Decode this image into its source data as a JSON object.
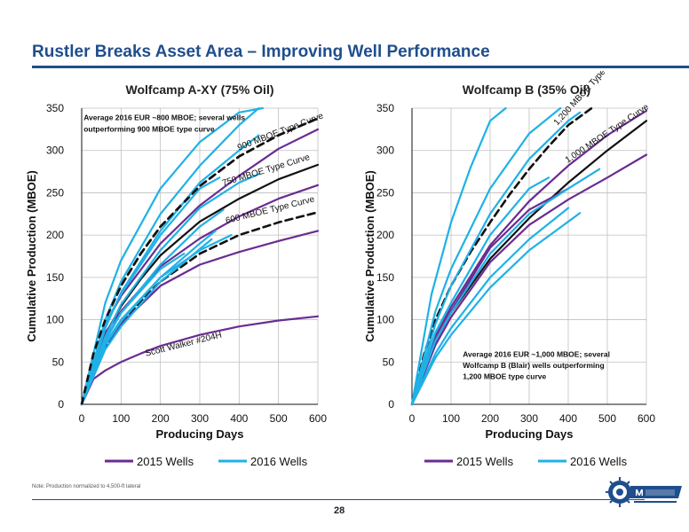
{
  "slide": {
    "title": "Rustler Breaks Asset Area – Improving Well Performance",
    "note": "Note: Production normalized to 4,500-ft lateral",
    "page_number": "28"
  },
  "colors": {
    "well2015": "#6a2c91",
    "well2016": "#1fb1e6",
    "type_curve": "#111111",
    "title": "#1f4e8c",
    "grid": "#bfbfbf"
  },
  "chart_data": [
    {
      "type": "line",
      "title": "Wolfcamp A-XY (75% Oil)",
      "xlabel": "Producing Days",
      "ylabel": "Cumulative Production (MBOE)",
      "xlim": [
        0,
        600
      ],
      "ylim": [
        0,
        350
      ],
      "xticks": [
        0,
        100,
        200,
        300,
        400,
        500,
        600
      ],
      "yticks": [
        0,
        50,
        100,
        150,
        200,
        250,
        300,
        350
      ],
      "grid": true,
      "legend": {
        "position": "bottom",
        "entries": [
          {
            "label": "2015 Wells",
            "style": "well2015"
          },
          {
            "label": "2016 Wells",
            "style": "well2016"
          }
        ]
      },
      "annotations": [
        {
          "text": "Average 2016 EUR ~800 MBOE; several wells",
          "at": [
            5,
            336
          ]
        },
        {
          "text": "outperforming 900 MBOE type curve",
          "at": [
            5,
            322
          ]
        }
      ],
      "series": [
        {
          "style": "type_dashed",
          "label": "900 MBOE Type Curve",
          "x": [
            0,
            30,
            60,
            100,
            150,
            200,
            300,
            400,
            500,
            600
          ],
          "y": [
            0,
            60,
            100,
            140,
            178,
            210,
            258,
            293,
            318,
            338
          ]
        },
        {
          "style": "type_solid",
          "label": "750 MBOE Type Curve",
          "x": [
            0,
            30,
            60,
            100,
            150,
            200,
            300,
            400,
            500,
            600
          ],
          "y": [
            0,
            50,
            83,
            116,
            148,
            176,
            216,
            243,
            266,
            283
          ]
        },
        {
          "style": "type_dashed",
          "label": "600 MBOE Type Curve",
          "x": [
            0,
            30,
            60,
            100,
            150,
            200,
            300,
            400,
            500,
            600
          ],
          "y": [
            0,
            42,
            68,
            95,
            122,
            145,
            178,
            200,
            215,
            227
          ]
        },
        {
          "style": "well2015",
          "label": "Scott Walker #204H",
          "x": [
            0,
            30,
            60,
            100,
            150,
            200,
            300,
            400,
            500,
            600
          ],
          "y": [
            0,
            30,
            40,
            50,
            60,
            69,
            82,
            92,
            99,
            104
          ]
        },
        {
          "style": "well2015",
          "x": [
            0,
            60,
            100,
            200,
            300,
            400,
            500,
            600
          ],
          "y": [
            0,
            95,
            128,
            190,
            235,
            270,
            302,
            325
          ]
        },
        {
          "style": "well2015",
          "x": [
            0,
            60,
            100,
            200,
            300,
            400,
            500,
            600
          ],
          "y": [
            0,
            85,
            110,
            163,
            196,
            222,
            243,
            259
          ]
        },
        {
          "style": "well2015",
          "x": [
            0,
            60,
            100,
            200,
            300,
            400,
            500,
            600
          ],
          "y": [
            0,
            70,
            95,
            140,
            165,
            180,
            193,
            205
          ]
        },
        {
          "style": "well2016",
          "x": [
            0,
            60,
            100,
            200,
            300,
            400,
            460
          ],
          "y": [
            0,
            120,
            170,
            255,
            310,
            345,
            350
          ]
        },
        {
          "style": "well2016",
          "x": [
            0,
            60,
            100,
            200,
            300,
            400,
            450
          ],
          "y": [
            0,
            100,
            145,
            225,
            282,
            330,
            350
          ]
        },
        {
          "style": "well2016",
          "x": [
            0,
            60,
            100,
            200,
            300,
            400,
            450
          ],
          "y": [
            0,
            90,
            132,
            205,
            262,
            300,
            318
          ]
        },
        {
          "style": "well2016",
          "x": [
            0,
            60,
            100,
            200,
            300,
            350
          ],
          "y": [
            0,
            95,
            130,
            200,
            255,
            268
          ]
        },
        {
          "style": "well2016",
          "x": [
            0,
            60,
            100,
            200,
            300,
            400,
            450
          ],
          "y": [
            0,
            80,
            118,
            182,
            232,
            262,
            272
          ]
        },
        {
          "style": "well2016",
          "x": [
            0,
            60,
            100,
            200,
            300,
            360
          ],
          "y": [
            0,
            75,
            108,
            165,
            210,
            230
          ]
        },
        {
          "style": "well2016",
          "x": [
            0,
            60,
            100,
            200,
            300,
            340
          ],
          "y": [
            0,
            70,
            98,
            150,
            190,
            205
          ]
        },
        {
          "style": "well2016",
          "x": [
            0,
            60,
            100,
            200,
            300,
            380
          ],
          "y": [
            0,
            72,
            100,
            150,
            182,
            200
          ]
        },
        {
          "style": "well2016",
          "x": [
            0,
            60,
            100,
            200,
            260
          ],
          "y": [
            0,
            78,
            108,
            160,
            178
          ]
        },
        {
          "style": "well2016",
          "x": [
            0,
            60,
            100,
            200,
            330
          ],
          "y": [
            0,
            65,
            92,
            145,
            195
          ]
        }
      ]
    },
    {
      "type": "line",
      "title": "Wolfcamp B (35% Oil)",
      "xlabel": "Producing Days",
      "ylabel": "Cumulative Production (MBOE)",
      "xlim": [
        0,
        600
      ],
      "ylim": [
        0,
        350
      ],
      "xticks": [
        0,
        100,
        200,
        300,
        400,
        500,
        600
      ],
      "yticks": [
        0,
        50,
        100,
        150,
        200,
        250,
        300,
        350
      ],
      "grid": true,
      "legend": {
        "position": "bottom",
        "entries": [
          {
            "label": "2015 Wells",
            "style": "well2015"
          },
          {
            "label": "2016 Wells",
            "style": "well2016"
          }
        ]
      },
      "annotations": [
        {
          "text": "Average 2016 EUR ~1,000 MBOE; several",
          "at": [
            130,
            56
          ]
        },
        {
          "text": "Wolfcamp B (Blair) wells outperforming",
          "at": [
            130,
            43
          ]
        },
        {
          "text": "1,200 MBOE type curve",
          "at": [
            130,
            30
          ]
        }
      ],
      "series": [
        {
          "style": "type_dashed",
          "label": "1,200 MBOE Type Curve",
          "x": [
            0,
            30,
            60,
            100,
            150,
            200,
            250,
            300,
            350,
            400,
            460
          ],
          "y": [
            0,
            58,
            100,
            140,
            180,
            215,
            248,
            278,
            305,
            330,
            350
          ]
        },
        {
          "style": "type_solid",
          "label": "1,000 MBOE Type Curve",
          "x": [
            0,
            30,
            60,
            100,
            150,
            200,
            300,
            400,
            500,
            600
          ],
          "y": [
            0,
            45,
            75,
            108,
            140,
            172,
            220,
            262,
            300,
            335
          ]
        },
        {
          "style": "well2015",
          "x": [
            0,
            60,
            100,
            200,
            300,
            400,
            500,
            600
          ],
          "y": [
            0,
            80,
            115,
            188,
            240,
            282,
            318,
            347
          ]
        },
        {
          "style": "well2015",
          "x": [
            0,
            60,
            100,
            200,
            300,
            400,
            500,
            600
          ],
          "y": [
            0,
            70,
            103,
            168,
            212,
            242,
            268,
            295
          ]
        },
        {
          "style": "well2015",
          "x": [
            0,
            60,
            100,
            200,
            300,
            400
          ],
          "y": [
            0,
            75,
            110,
            185,
            230,
            255
          ]
        },
        {
          "style": "well2016",
          "x": [
            0,
            50,
            100,
            150,
            200,
            240
          ],
          "y": [
            0,
            130,
            215,
            280,
            335,
            350
          ]
        },
        {
          "style": "well2016",
          "x": [
            0,
            60,
            100,
            200,
            300,
            380
          ],
          "y": [
            0,
            110,
            160,
            255,
            320,
            350
          ]
        },
        {
          "style": "well2016",
          "x": [
            0,
            60,
            100,
            200,
            300,
            400,
            430
          ],
          "y": [
            0,
            95,
            140,
            225,
            290,
            335,
            345
          ]
        },
        {
          "style": "well2016",
          "x": [
            0,
            60,
            100,
            200,
            300,
            400,
            480
          ],
          "y": [
            0,
            75,
            108,
            178,
            225,
            255,
            278
          ]
        },
        {
          "style": "well2016",
          "x": [
            0,
            60,
            100,
            200,
            300,
            350
          ],
          "y": [
            0,
            85,
            120,
            200,
            255,
            268
          ]
        },
        {
          "style": "well2016",
          "x": [
            0,
            60,
            100,
            200,
            300,
            400
          ],
          "y": [
            0,
            60,
            90,
            150,
            195,
            232
          ]
        },
        {
          "style": "well2016",
          "x": [
            0,
            60,
            100,
            200,
            300,
            430
          ],
          "y": [
            0,
            55,
            82,
            138,
            182,
            226
          ]
        }
      ]
    }
  ]
}
